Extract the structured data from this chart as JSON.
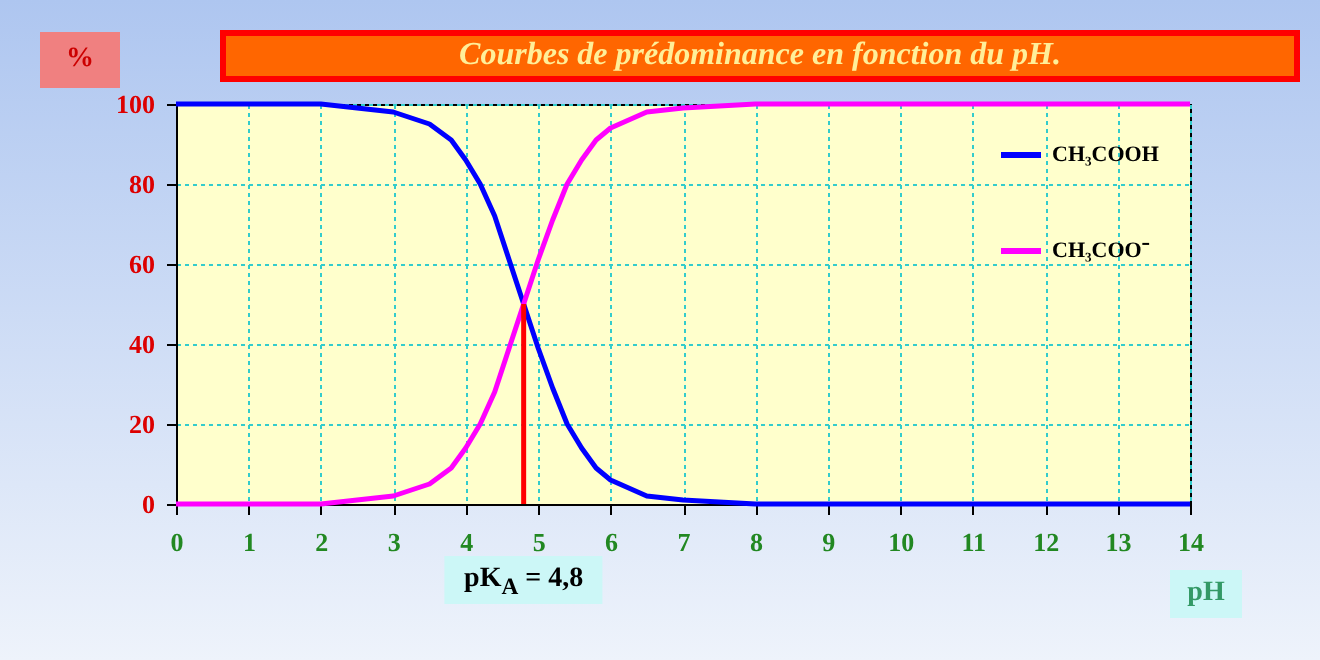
{
  "chart_data": {
    "type": "line",
    "title": "Courbes de prédominance en fonction du pH.",
    "xlabel": "pH",
    "ylabel": "%",
    "x": [
      0,
      1,
      2,
      2.5,
      3,
      3.5,
      3.8,
      4,
      4.2,
      4.4,
      4.6,
      4.8,
      5,
      5.2,
      5.4,
      5.6,
      5.8,
      6,
      6.5,
      7,
      8,
      10,
      12,
      14
    ],
    "series": [
      {
        "name": "CH₃COOH",
        "color": "#0000ff",
        "values": [
          100,
          100,
          100,
          99,
          98,
          95,
          91,
          86,
          80,
          72,
          61,
          50,
          39,
          29,
          20,
          14,
          9,
          6,
          2,
          1,
          0,
          0,
          0,
          0
        ]
      },
      {
        "name": "CH₃COO⁻",
        "color": "#ff00ff",
        "values": [
          0,
          0,
          0,
          1,
          2,
          5,
          9,
          14,
          20,
          28,
          39,
          50,
          61,
          71,
          80,
          86,
          91,
          94,
          98,
          99,
          100,
          100,
          100,
          100
        ]
      }
    ],
    "xlim": [
      0,
      14
    ],
    "xticks": [
      0,
      1,
      2,
      3,
      4,
      5,
      6,
      7,
      8,
      9,
      10,
      11,
      12,
      13,
      14
    ],
    "ylim": [
      0,
      100
    ],
    "yticks": [
      0,
      20,
      40,
      60,
      80,
      100
    ],
    "ref_lines": [
      {
        "axis": "x",
        "value": 4.8,
        "label": "pK$_{A}$ = 4,8",
        "color": "#ff0000"
      }
    ],
    "grid": true,
    "legend": "right",
    "marker": "none",
    "line_style": "solid"
  }
}
